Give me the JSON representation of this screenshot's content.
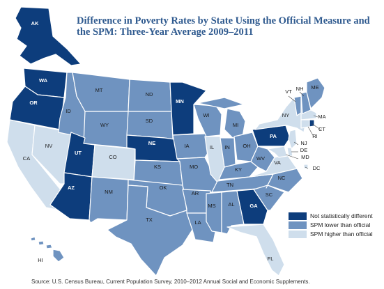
{
  "title": "Difference in Poverty Rates by State Using the Official Measure and the SPM: Three-Year Average 2009–2011",
  "source": "Source: U.S. Census Bureau, Current Population Survey,  2010–2012 Annual Social and Economic Supplements.",
  "colors": {
    "not_significant": "#0d3d7c",
    "spm_lower": "#6f93c0",
    "spm_higher": "#cfdeec",
    "label_dark_bg": "#ffffff",
    "label_light_bg": "#1a1a1a"
  },
  "legend": [
    {
      "key": "not_significant",
      "label": "Not statistically different"
    },
    {
      "key": "spm_lower",
      "label": "SPM lower than official"
    },
    {
      "key": "spm_higher",
      "label": "SPM higher than official"
    }
  ],
  "states": [
    {
      "abbr": "AK",
      "category": "not_significant"
    },
    {
      "abbr": "HI",
      "category": "spm_lower"
    },
    {
      "abbr": "WA",
      "category": "not_significant"
    },
    {
      "abbr": "OR",
      "category": "not_significant"
    },
    {
      "abbr": "CA",
      "category": "spm_higher"
    },
    {
      "abbr": "NV",
      "category": "spm_higher"
    },
    {
      "abbr": "ID",
      "category": "spm_lower"
    },
    {
      "abbr": "MT",
      "category": "spm_lower"
    },
    {
      "abbr": "WY",
      "category": "spm_lower"
    },
    {
      "abbr": "UT",
      "category": "not_significant"
    },
    {
      "abbr": "AZ",
      "category": "not_significant"
    },
    {
      "abbr": "CO",
      "category": "spm_higher"
    },
    {
      "abbr": "NM",
      "category": "spm_lower"
    },
    {
      "abbr": "ND",
      "category": "spm_lower"
    },
    {
      "abbr": "SD",
      "category": "spm_lower"
    },
    {
      "abbr": "NE",
      "category": "not_significant"
    },
    {
      "abbr": "KS",
      "category": "spm_lower"
    },
    {
      "abbr": "OK",
      "category": "spm_lower"
    },
    {
      "abbr": "TX",
      "category": "spm_lower"
    },
    {
      "abbr": "MN",
      "category": "not_significant"
    },
    {
      "abbr": "IA",
      "category": "spm_lower"
    },
    {
      "abbr": "MO",
      "category": "spm_lower"
    },
    {
      "abbr": "AR",
      "category": "spm_lower"
    },
    {
      "abbr": "LA",
      "category": "spm_lower"
    },
    {
      "abbr": "WI",
      "category": "spm_lower"
    },
    {
      "abbr": "IL",
      "category": "spm_higher"
    },
    {
      "abbr": "MI",
      "category": "spm_lower"
    },
    {
      "abbr": "IN",
      "category": "spm_lower"
    },
    {
      "abbr": "OH",
      "category": "spm_lower"
    },
    {
      "abbr": "KY",
      "category": "spm_lower"
    },
    {
      "abbr": "TN",
      "category": "spm_lower"
    },
    {
      "abbr": "MS",
      "category": "spm_lower"
    },
    {
      "abbr": "AL",
      "category": "spm_lower"
    },
    {
      "abbr": "GA",
      "category": "not_significant"
    },
    {
      "abbr": "FL",
      "category": "spm_higher"
    },
    {
      "abbr": "SC",
      "category": "spm_lower"
    },
    {
      "abbr": "NC",
      "category": "spm_lower"
    },
    {
      "abbr": "VA",
      "category": "spm_higher"
    },
    {
      "abbr": "WV",
      "category": "spm_lower"
    },
    {
      "abbr": "PA",
      "category": "not_significant"
    },
    {
      "abbr": "NY",
      "category": "spm_higher"
    },
    {
      "abbr": "VT",
      "category": "spm_lower"
    },
    {
      "abbr": "NH",
      "category": "spm_lower"
    },
    {
      "abbr": "ME",
      "category": "spm_lower"
    },
    {
      "abbr": "MA",
      "category": "spm_higher"
    },
    {
      "abbr": "RI",
      "category": "not_significant"
    },
    {
      "abbr": "CT",
      "category": "spm_higher"
    },
    {
      "abbr": "NJ",
      "category": "spm_higher"
    },
    {
      "abbr": "DE",
      "category": "spm_higher"
    },
    {
      "abbr": "MD",
      "category": "spm_higher"
    },
    {
      "abbr": "DC",
      "category": "spm_higher"
    }
  ]
}
